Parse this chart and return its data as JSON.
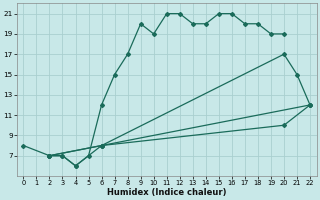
{
  "xlabel": "Humidex (Indice chaleur)",
  "bg_color": "#c8e8e8",
  "grid_color": "#aacfcf",
  "line_color": "#1a6b5a",
  "xlim": [
    -0.5,
    22.5
  ],
  "ylim": [
    5,
    22
  ],
  "xticks": [
    0,
    1,
    2,
    3,
    4,
    5,
    6,
    7,
    8,
    9,
    10,
    11,
    12,
    13,
    14,
    15,
    16,
    17,
    18,
    19,
    20,
    21,
    22
  ],
  "yticks": [
    7,
    9,
    11,
    13,
    15,
    17,
    19,
    21
  ],
  "curves": [
    {
      "x": [
        0,
        2,
        3,
        4,
        5,
        6,
        7,
        8,
        9,
        10,
        11,
        12,
        13,
        14,
        15,
        16,
        17,
        18,
        19,
        20
      ],
      "y": [
        8,
        7,
        7,
        6,
        7,
        12,
        15,
        17,
        20,
        19,
        21,
        21,
        20,
        20,
        21,
        21,
        20,
        20,
        19,
        19
      ]
    },
    {
      "x": [
        2,
        3,
        4,
        6,
        20,
        21,
        22
      ],
      "y": [
        7,
        7,
        6,
        8,
        17,
        15,
        12
      ]
    },
    {
      "x": [
        2,
        6,
        22
      ],
      "y": [
        7,
        8,
        12
      ]
    },
    {
      "x": [
        2,
        6,
        20,
        22
      ],
      "y": [
        7,
        8,
        10,
        12
      ]
    }
  ]
}
